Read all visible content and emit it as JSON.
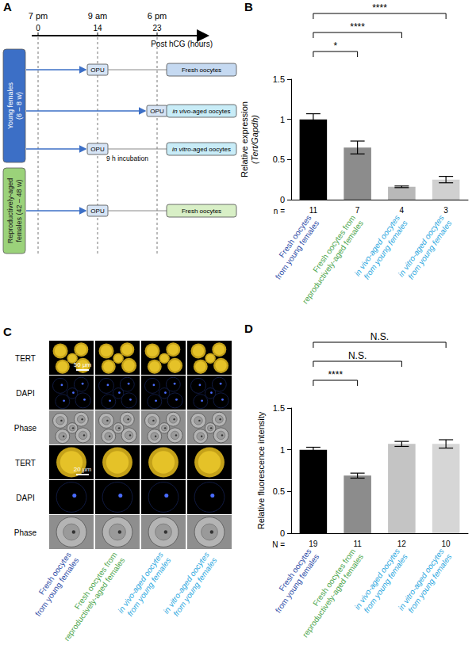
{
  "panel_labels": [
    "A",
    "B",
    "C",
    "D"
  ],
  "panel_a": {
    "times": [
      "7 pm",
      "9 am",
      "6 pm"
    ],
    "hours": [
      0,
      14,
      23
    ],
    "axis_label": "Post hCG (hours)",
    "groups": [
      "Young females\n(6 – 8 w)",
      "Reproductively-aged\nfemales (42 – 48 w)"
    ],
    "step": "OPU",
    "rows": [
      {
        "result": "Fresh oocytes"
      },
      {
        "result": "in vivo-aged oocytes"
      },
      {
        "result": "in vitro-aged oocytes",
        "note": "9 h incubation"
      },
      {
        "result": "Fresh oocytes"
      }
    ]
  },
  "panel_c": {
    "rows": [
      "TERT",
      "DAPI",
      "Phase",
      "TERT",
      "DAPI",
      "Phase"
    ],
    "scale_bars": [
      "50 μm",
      "20 μm"
    ],
    "columns": [
      "Fresh oocytes\nfrom young females",
      "Fresh oocytes from\nreproductively-aged females",
      "in vivo-aged oocytes\nfrom young females",
      "in vitro-aged oocytes\nfrom young females"
    ]
  },
  "chart_data": [
    {
      "type": "bar",
      "categories": [
        "Fresh oocytes\nfrom young females",
        "Fresh oocytes from\nreproductively-aged females",
        "in vivo-aged oocytes\nfrom young females",
        "in vitro-aged oocytes\nfrom young females"
      ],
      "values": [
        1.0,
        0.65,
        0.16,
        0.25
      ],
      "errors": [
        0.07,
        0.08,
        0.01,
        0.04
      ],
      "n_label": "n =",
      "n": [
        11,
        7,
        4,
        3
      ],
      "ylabel": "Relative expression\n(Tert/Gapdh)",
      "ylim": [
        0,
        1.5
      ],
      "yticks": [
        0,
        0.5,
        1,
        1.5
      ],
      "colors": [
        "#000000",
        "#8c8c8c",
        "#b8b8b8",
        "#d0d0d0"
      ],
      "grid": false,
      "comparisons": [
        {
          "pair": [
            0,
            1
          ],
          "label": "*"
        },
        {
          "pair": [
            0,
            2
          ],
          "label": "****"
        },
        {
          "pair": [
            0,
            3
          ],
          "label": "****"
        }
      ]
    },
    {
      "type": "bar",
      "categories": [
        "Fresh oocytes\nfrom young females",
        "Fresh oocytes from\nreproductively-aged females",
        "in vivo-aged oocytes\nfrom young females",
        "in vitro-aged oocytes\nfrom young females"
      ],
      "values": [
        1.0,
        0.69,
        1.07,
        1.07
      ],
      "errors": [
        0.03,
        0.03,
        0.03,
        0.05
      ],
      "n_label": "N =",
      "n": [
        19,
        11,
        12,
        10
      ],
      "ylabel": "Relative fluorescence intensity",
      "ylim": [
        0,
        1.5
      ],
      "yticks": [
        0,
        0.5,
        1,
        1.5
      ],
      "colors": [
        "#000000",
        "#8c8c8c",
        "#c4c4c4",
        "#d6d6d6"
      ],
      "grid": false,
      "comparisons": [
        {
          "pair": [
            0,
            1
          ],
          "label": "****"
        },
        {
          "pair": [
            0,
            2
          ],
          "label": "N.S."
        },
        {
          "pair": [
            0,
            3
          ],
          "label": "N.S."
        }
      ]
    }
  ]
}
